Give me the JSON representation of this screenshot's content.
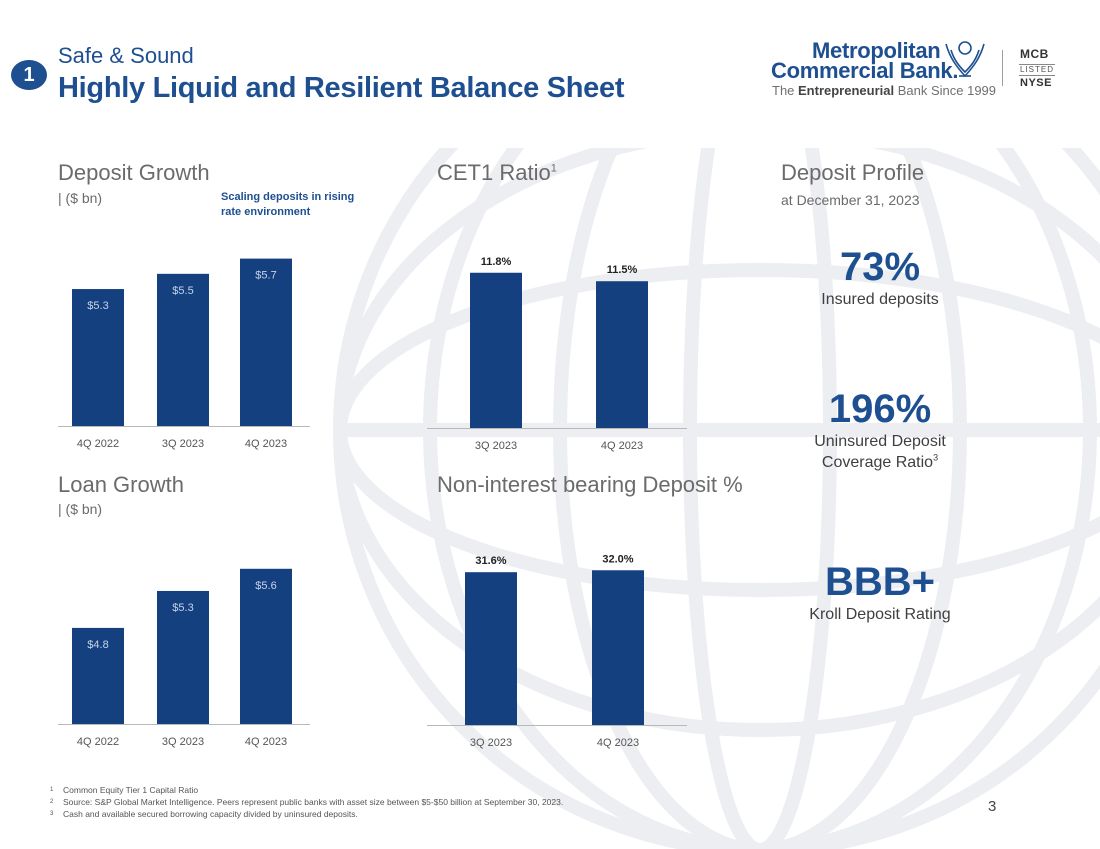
{
  "header": {
    "section_number": "1",
    "subtitle": "Safe & Sound",
    "title": "Highly Liquid and Resilient Balance Sheet"
  },
  "logo": {
    "line1": "Metropolitan",
    "line2": "Commercial Bank.",
    "tagline_pre": "The ",
    "tagline_bold": "Entrepreneurial",
    "tagline_post": " Bank Since 1999",
    "ticker": "MCB",
    "listed": "LISTED",
    "exchange": "NYSE"
  },
  "deposit_profile": {
    "title": "Deposit Profile",
    "subtitle": "at December 31, 2023",
    "stats": [
      {
        "value": "73%",
        "label": "Insured deposits",
        "footnote": ""
      },
      {
        "value": "196%",
        "label": "Uninsured Deposit",
        "label2": "Coverage Ratio",
        "footnote": "3"
      },
      {
        "value": "BBB+",
        "label": "Kroll Deposit Rating",
        "footnote": ""
      }
    ]
  },
  "chart_data": [
    {
      "type": "bar",
      "title": "Deposit Growth",
      "unit_label": "| ($ bn)",
      "annotation": "Scaling deposits in rising rate environment",
      "categories": [
        "4Q 2022",
        "3Q 2023",
        "4Q 2023"
      ],
      "values": [
        5.3,
        5.5,
        5.7
      ],
      "value_labels": [
        "$5.3",
        "$5.5",
        "$5.7"
      ],
      "label_position": "inside",
      "ylim": [
        3.5,
        5.8
      ]
    },
    {
      "type": "bar",
      "title": "CET1 Ratio",
      "title_footnote": "1",
      "categories": [
        "3Q 2023",
        "4Q 2023"
      ],
      "values": [
        11.8,
        11.5
      ],
      "value_labels": [
        "11.8%",
        "11.5%"
      ],
      "label_position": "above",
      "ylim": [
        6.3,
        12.5
      ]
    },
    {
      "type": "bar",
      "title": "Loan Growth",
      "unit_label": "| ($ bn)",
      "categories": [
        "4Q 2022",
        "3Q 2023",
        "4Q 2023"
      ],
      "values": [
        4.8,
        5.3,
        5.6
      ],
      "value_labels": [
        "$4.8",
        "$5.3",
        "$5.6"
      ],
      "label_position": "inside",
      "ylim": [
        3.5,
        5.8
      ]
    },
    {
      "type": "bar",
      "title": "Non-interest bearing Deposit %",
      "categories": [
        "3Q 2023",
        "4Q 2023"
      ],
      "values": [
        31.6,
        32.0
      ],
      "value_labels": [
        "31.6%",
        "32.0%"
      ],
      "label_position": "above",
      "ylim": [
        0,
        33.5
      ]
    }
  ],
  "footnotes": [
    {
      "n": "1",
      "text": "Common Equity Tier 1 Capital Ratio"
    },
    {
      "n": "2",
      "text": "Source: S&P Global Market Intelligence. Peers represent public banks with asset size between $5-$50 billion at September 30, 2023."
    },
    {
      "n": "3",
      "text": "Cash and available secured borrowing capacity divided by uninsured deposits."
    }
  ],
  "page_number": "3"
}
